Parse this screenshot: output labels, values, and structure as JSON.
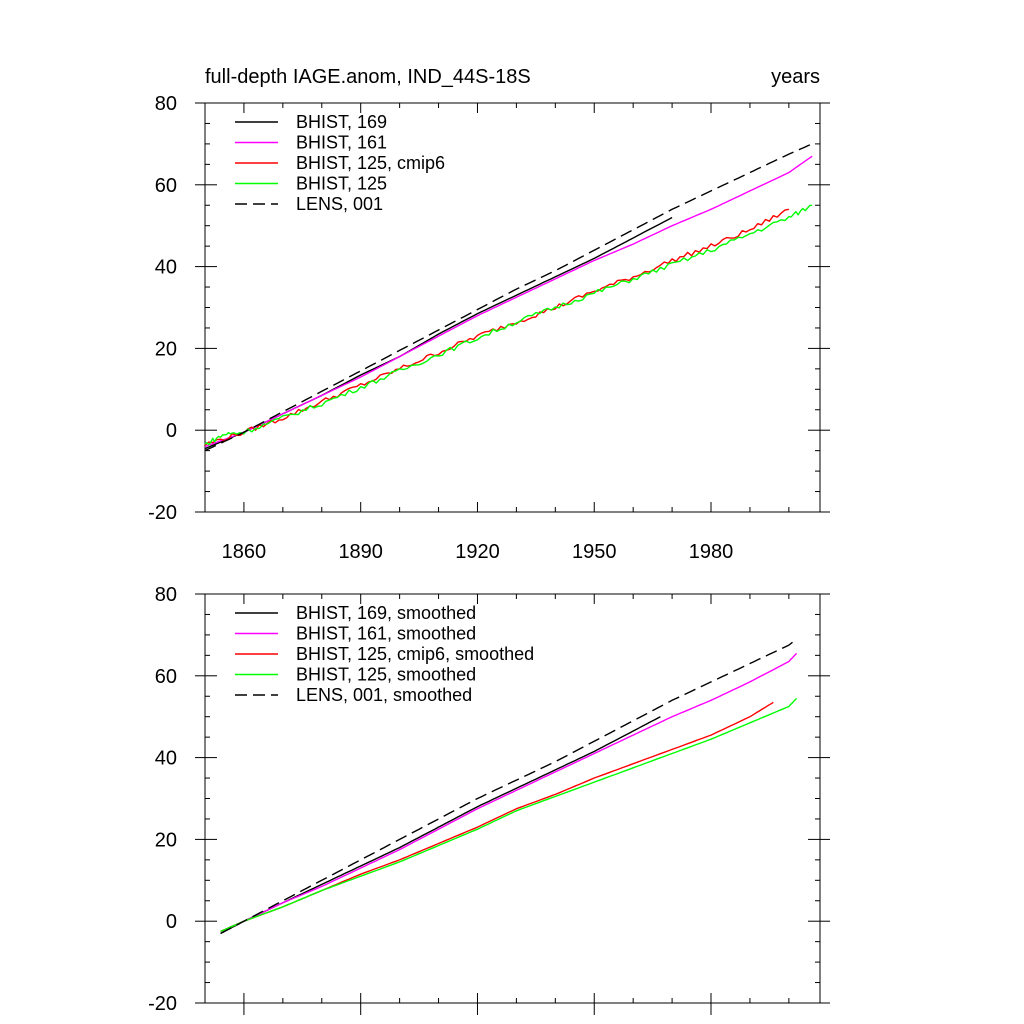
{
  "chart_data": [
    {
      "type": "line",
      "title": "full-depth IAGE.anom, IND_44S-18S",
      "units": "years",
      "xlim": [
        1850,
        2008
      ],
      "ylim": [
        -20,
        80
      ],
      "xticks": [
        1860,
        1890,
        1920,
        1950,
        1980
      ],
      "xtick_labels": [
        "1860",
        "1890",
        "1920",
        "1950",
        "1980"
      ],
      "yticks": [
        -20,
        0,
        20,
        40,
        60,
        80
      ],
      "ytick_labels": [
        "-20",
        "0",
        "20",
        "40",
        "60",
        "80"
      ],
      "legend_position": "top-left",
      "grid": false,
      "series": [
        {
          "name": "BHIST, 169",
          "color": "#000000",
          "dash": "solid",
          "wiggle": 0.0,
          "x": [
            1850,
            1860,
            1870,
            1880,
            1890,
            1900,
            1910,
            1920,
            1930,
            1940,
            1950,
            1960,
            1970
          ],
          "y": [
            -4.5,
            -0.5,
            4.0,
            8.5,
            13.5,
            18.0,
            23.5,
            28.5,
            33.0,
            37.5,
            42.0,
            47.0,
            52.0
          ]
        },
        {
          "name": "BHIST, 161",
          "color": "#ff00ff",
          "dash": "solid",
          "wiggle": 0.0,
          "x": [
            1850,
            1860,
            1870,
            1880,
            1890,
            1900,
            1910,
            1920,
            1930,
            1940,
            1950,
            1960,
            1970,
            1980,
            1990,
            2000,
            2006
          ],
          "y": [
            -4.0,
            -0.5,
            4.0,
            8.5,
            13.0,
            18.0,
            23.0,
            28.0,
            32.5,
            37.0,
            41.5,
            45.5,
            50.0,
            54.0,
            58.5,
            63.0,
            67.0
          ]
        },
        {
          "name": "BHIST, 125, cmip6",
          "color": "#ff0000",
          "dash": "solid",
          "wiggle": 0.6,
          "x": [
            1850,
            1860,
            1870,
            1880,
            1890,
            1900,
            1910,
            1920,
            1930,
            1940,
            1950,
            1960,
            1970,
            1980,
            1990,
            2000
          ],
          "y": [
            -3.5,
            -0.5,
            3.0,
            7.0,
            11.0,
            15.0,
            19.0,
            23.0,
            26.5,
            30.0,
            34.0,
            37.5,
            41.5,
            45.0,
            49.0,
            54.0
          ]
        },
        {
          "name": "BHIST, 125",
          "color": "#00ff00",
          "dash": "solid",
          "wiggle": 0.6,
          "x": [
            1850,
            1855,
            1860,
            1870,
            1880,
            1890,
            1900,
            1910,
            1920,
            1930,
            1940,
            1950,
            1960,
            1970,
            1980,
            1990,
            2000,
            2006
          ],
          "y": [
            -3.5,
            -1.0,
            -0.5,
            3.0,
            6.5,
            10.5,
            14.5,
            18.5,
            22.5,
            26.5,
            30.0,
            33.5,
            37.0,
            40.5,
            44.0,
            48.0,
            52.0,
            55.0
          ]
        },
        {
          "name": "LENS, 001",
          "color": "#000000",
          "dash": "dashed",
          "wiggle": 0.0,
          "x": [
            1850,
            1860,
            1870,
            1880,
            1890,
            1900,
            1910,
            1920,
            1930,
            1940,
            1950,
            1960,
            1970,
            1980,
            1990,
            2000,
            2006
          ],
          "y": [
            -5.0,
            -0.5,
            4.5,
            9.5,
            14.5,
            19.5,
            24.5,
            29.5,
            34.5,
            39.0,
            44.0,
            49.0,
            54.0,
            58.5,
            63.0,
            67.5,
            70.0
          ]
        }
      ]
    },
    {
      "type": "line",
      "xlim": [
        1850,
        2008
      ],
      "ylim": [
        -20,
        80
      ],
      "xticks": [
        1860,
        1890,
        1920,
        1950,
        1980
      ],
      "xtick_labels": [],
      "yticks": [
        -20,
        0,
        20,
        40,
        60,
        80
      ],
      "ytick_labels": [
        "-20",
        "0",
        "20",
        "40",
        "60",
        "80"
      ],
      "legend_position": "top-left",
      "grid": false,
      "series": [
        {
          "name": "BHIST, 169, smoothed",
          "color": "#000000",
          "dash": "solid",
          "wiggle": 0.0,
          "x": [
            1854,
            1860,
            1870,
            1880,
            1890,
            1900,
            1910,
            1920,
            1930,
            1940,
            1950,
            1960,
            1967
          ],
          "y": [
            -3.0,
            0.0,
            4.5,
            9.0,
            13.5,
            18.0,
            23.0,
            28.0,
            32.5,
            37.0,
            41.5,
            46.5,
            50.0
          ]
        },
        {
          "name": "BHIST, 161, smoothed",
          "color": "#ff00ff",
          "dash": "solid",
          "wiggle": 0.0,
          "x": [
            1854,
            1860,
            1870,
            1880,
            1890,
            1900,
            1910,
            1920,
            1930,
            1940,
            1950,
            1960,
            1970,
            1980,
            1990,
            2000,
            2002
          ],
          "y": [
            -2.5,
            0.0,
            4.5,
            8.5,
            13.0,
            17.5,
            22.5,
            27.5,
            32.0,
            36.5,
            41.0,
            45.5,
            50.0,
            54.0,
            58.5,
            63.5,
            65.5
          ]
        },
        {
          "name": "BHIST, 125, cmip6, smoothed",
          "color": "#ff0000",
          "dash": "solid",
          "wiggle": 0.0,
          "x": [
            1854,
            1860,
            1870,
            1880,
            1890,
            1900,
            1910,
            1920,
            1930,
            1940,
            1950,
            1960,
            1970,
            1980,
            1990,
            1996
          ],
          "y": [
            -2.5,
            0.0,
            3.5,
            7.5,
            11.5,
            15.0,
            19.0,
            23.0,
            27.5,
            31.0,
            35.0,
            38.5,
            42.0,
            45.5,
            50.0,
            53.5
          ]
        },
        {
          "name": "BHIST, 125, smoothed",
          "color": "#00ff00",
          "dash": "solid",
          "wiggle": 0.0,
          "x": [
            1854,
            1860,
            1870,
            1880,
            1890,
            1900,
            1910,
            1920,
            1930,
            1940,
            1950,
            1960,
            1970,
            1980,
            1990,
            2000,
            2002
          ],
          "y": [
            -2.5,
            0.0,
            3.5,
            7.5,
            11.0,
            14.5,
            18.5,
            22.5,
            27.0,
            30.5,
            34.0,
            37.5,
            41.0,
            44.5,
            48.5,
            52.5,
            54.5
          ]
        },
        {
          "name": "LENS, 001, smoothed",
          "color": "#000000",
          "dash": "dashed",
          "wiggle": 0.0,
          "x": [
            1854,
            1860,
            1870,
            1880,
            1890,
            1900,
            1910,
            1920,
            1930,
            1940,
            1950,
            1960,
            1970,
            1980,
            1990,
            2000,
            2002
          ],
          "y": [
            -3.0,
            0.0,
            5.0,
            10.0,
            15.0,
            20.0,
            25.0,
            30.0,
            34.5,
            39.0,
            44.0,
            49.0,
            54.0,
            58.5,
            63.0,
            67.5,
            69.0
          ]
        }
      ]
    }
  ]
}
